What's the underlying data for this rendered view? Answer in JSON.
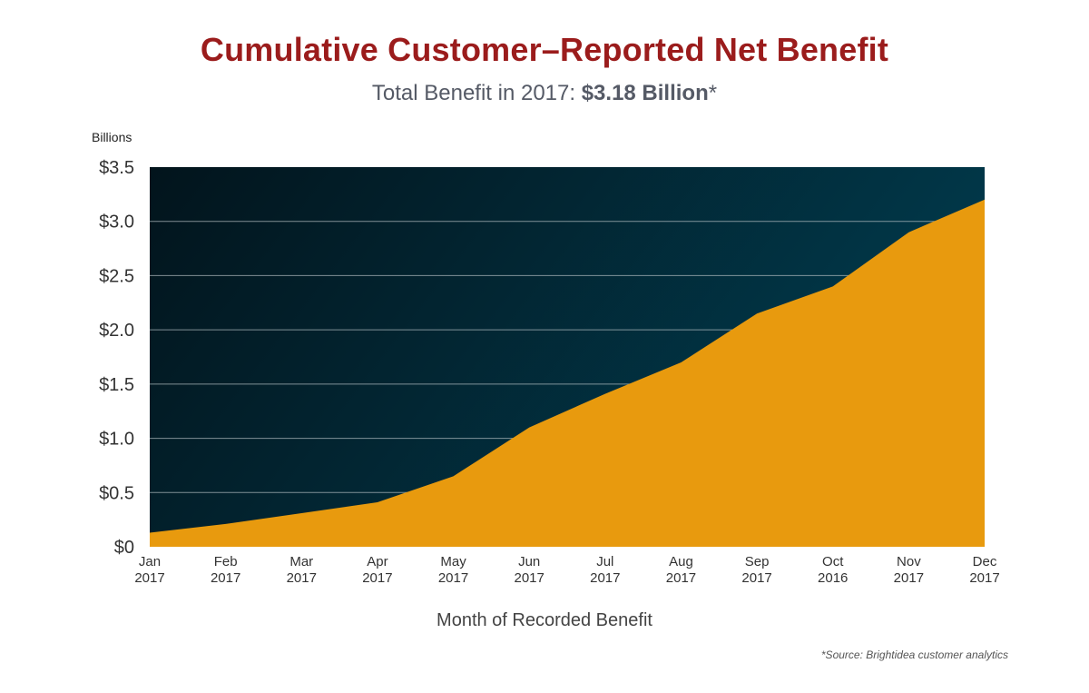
{
  "header": {
    "title": "Cumulative Customer–Reported Net Benefit",
    "subtitle_prefix": "Total Benefit in 2017: ",
    "subtitle_value": "$3.18 Billion",
    "subtitle_suffix": "*"
  },
  "footer": {
    "source": "*Source: Brightidea customer analytics"
  },
  "colors": {
    "title": "#9b1c1c",
    "area_fill": "#e89a0e",
    "plot_bg_dark": "#02141c",
    "plot_bg_light": "#013a4c",
    "gridline": "#b7c0c4"
  },
  "chart_data": {
    "type": "area",
    "units_label": "Billions",
    "xlabel": "Month of Recorded Benefit",
    "ylabel": "",
    "ylim": [
      0,
      3.5
    ],
    "y_ticks": [
      0,
      0.5,
      1.0,
      1.5,
      2.0,
      2.5,
      3.0,
      3.5
    ],
    "y_tick_labels": [
      "$0",
      "$0.5",
      "$1.0",
      "$1.5",
      "$2.0",
      "$2.5",
      "$3.0",
      "$3.5"
    ],
    "grid": true,
    "categories": [
      [
        "Jan",
        "2017"
      ],
      [
        "Feb",
        "2017"
      ],
      [
        "Mar",
        "2017"
      ],
      [
        "Apr",
        "2017"
      ],
      [
        "May",
        "2017"
      ],
      [
        "Jun",
        "2017"
      ],
      [
        "Jul",
        "2017"
      ],
      [
        "Aug",
        "2017"
      ],
      [
        "Sep",
        "2017"
      ],
      [
        "Oct",
        "2016"
      ],
      [
        "Nov",
        "2017"
      ],
      [
        "Dec",
        "2017"
      ]
    ],
    "values": [
      0.13,
      0.21,
      0.31,
      0.41,
      0.65,
      1.1,
      1.41,
      1.7,
      2.15,
      2.4,
      2.9,
      3.2
    ]
  }
}
